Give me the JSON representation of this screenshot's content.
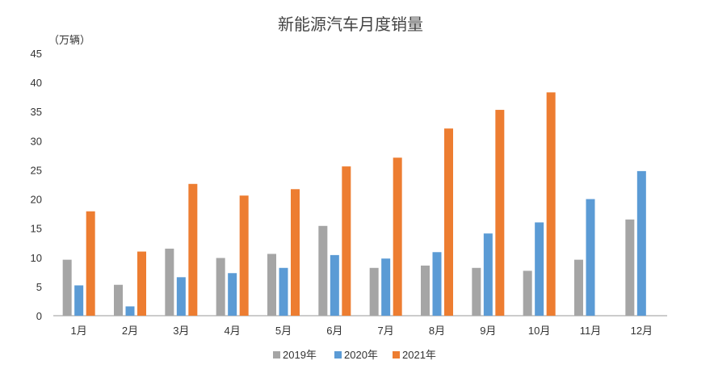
{
  "chart_data": {
    "type": "bar",
    "title": "新能源汽车月度销量",
    "ylabel": "（万辆）",
    "ylim": [
      0,
      45
    ],
    "yticks": [
      0,
      5,
      10,
      15,
      20,
      25,
      30,
      35,
      40,
      45
    ],
    "categories": [
      "1月",
      "2月",
      "3月",
      "4月",
      "5月",
      "6月",
      "7月",
      "8月",
      "9月",
      "10月",
      "11月",
      "12月"
    ],
    "series": [
      {
        "name": "2019年",
        "color": "#a5a5a5",
        "values": [
          9.6,
          5.3,
          11.5,
          9.9,
          10.6,
          15.4,
          8.2,
          8.6,
          8.2,
          7.7,
          9.6,
          16.5
        ]
      },
      {
        "name": "2020年",
        "color": "#5b9bd5",
        "values": [
          5.2,
          1.6,
          6.6,
          7.3,
          8.2,
          10.4,
          9.8,
          10.9,
          14.1,
          16.0,
          20.0,
          24.8
        ]
      },
      {
        "name": "2021年",
        "color": "#ed7d31",
        "values": [
          17.9,
          11.0,
          22.6,
          20.6,
          21.7,
          25.6,
          27.1,
          32.1,
          35.3,
          38.3,
          null,
          null
        ]
      }
    ],
    "grid": false,
    "legend_position": "bottom-center"
  }
}
